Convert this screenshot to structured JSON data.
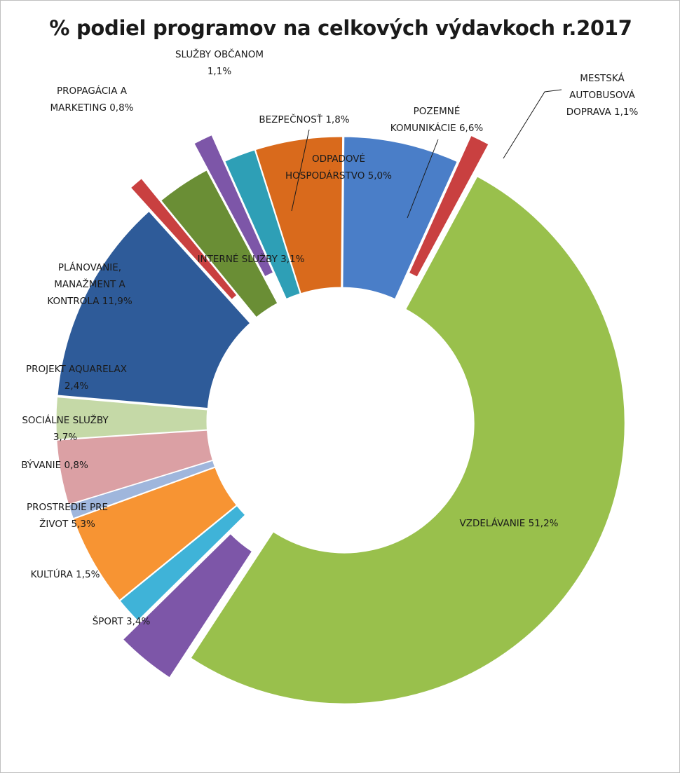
{
  "chart_data": {
    "type": "pie",
    "variant": "donut-exploded",
    "title": "% podiel programov na celkových výdavkoch r.2017",
    "legend": "none",
    "data_labels": "category-and-percent",
    "slices": [
      {
        "label": "POZEMNÉ KOMUNIKÁCIE",
        "value_text": "6,6%",
        "value": 6.6,
        "color": "#4a7ec8"
      },
      {
        "label": "MESTSKÁ AUTOBUSOVÁ DOPRAVA",
        "value_text": "1,1%",
        "value": 1.1,
        "color": "#c94040"
      },
      {
        "label": "VZDELÁVANIE",
        "value_text": "51,2%",
        "value": 51.2,
        "color": "#99c04c"
      },
      {
        "label": "ŠPORT",
        "value_text": "3,4%",
        "value": 3.4,
        "color": "#7d56a8"
      },
      {
        "label": "KULTÚRA",
        "value_text": "1,5%",
        "value": 1.5,
        "color": "#3fb3d8"
      },
      {
        "label": "PROSTREDIE PRE ŽIVOT",
        "value_text": "5,3%",
        "value": 5.3,
        "color": "#f79433"
      },
      {
        "label": "BÝVANIE",
        "value_text": "0,8%",
        "value": 0.8,
        "color": "#9fb6dc"
      },
      {
        "label": "SOCIÁLNE SLUŽBY",
        "value_text": "3,7%",
        "value": 3.7,
        "color": "#dba0a4"
      },
      {
        "label": "PROJEKT AQUARELAX",
        "value_text": "2,4%",
        "value": 2.4,
        "color": "#c5d9a7"
      },
      {
        "label": "PLÁNOVANIE, MANAŽMENT A KONTROLA",
        "value_text": "11,9%",
        "value": 11.9,
        "color": "#2e5b99"
      },
      {
        "label": "PROPAGÁCIA A MARKETING",
        "value_text": "0,8%",
        "value": 0.8,
        "color": "#c94040"
      },
      {
        "label": "INTERNÉ SLUŽBY",
        "value_text": "3,1%",
        "value": 3.1,
        "color": "#6a8e35"
      },
      {
        "label": "SLUŽBY OBČANOM",
        "value_text": "1,1%",
        "value": 1.1,
        "color": "#7d56a8"
      },
      {
        "label": "BEZPEČNOSŤ",
        "value_text": "1,8%",
        "value": 1.8,
        "color": "#2e9fb6"
      },
      {
        "label": "ODPADOVÉ HOSPODÁRSTVO",
        "value_text": "5,0%",
        "value": 5.0,
        "color": "#d96a1c"
      }
    ]
  }
}
